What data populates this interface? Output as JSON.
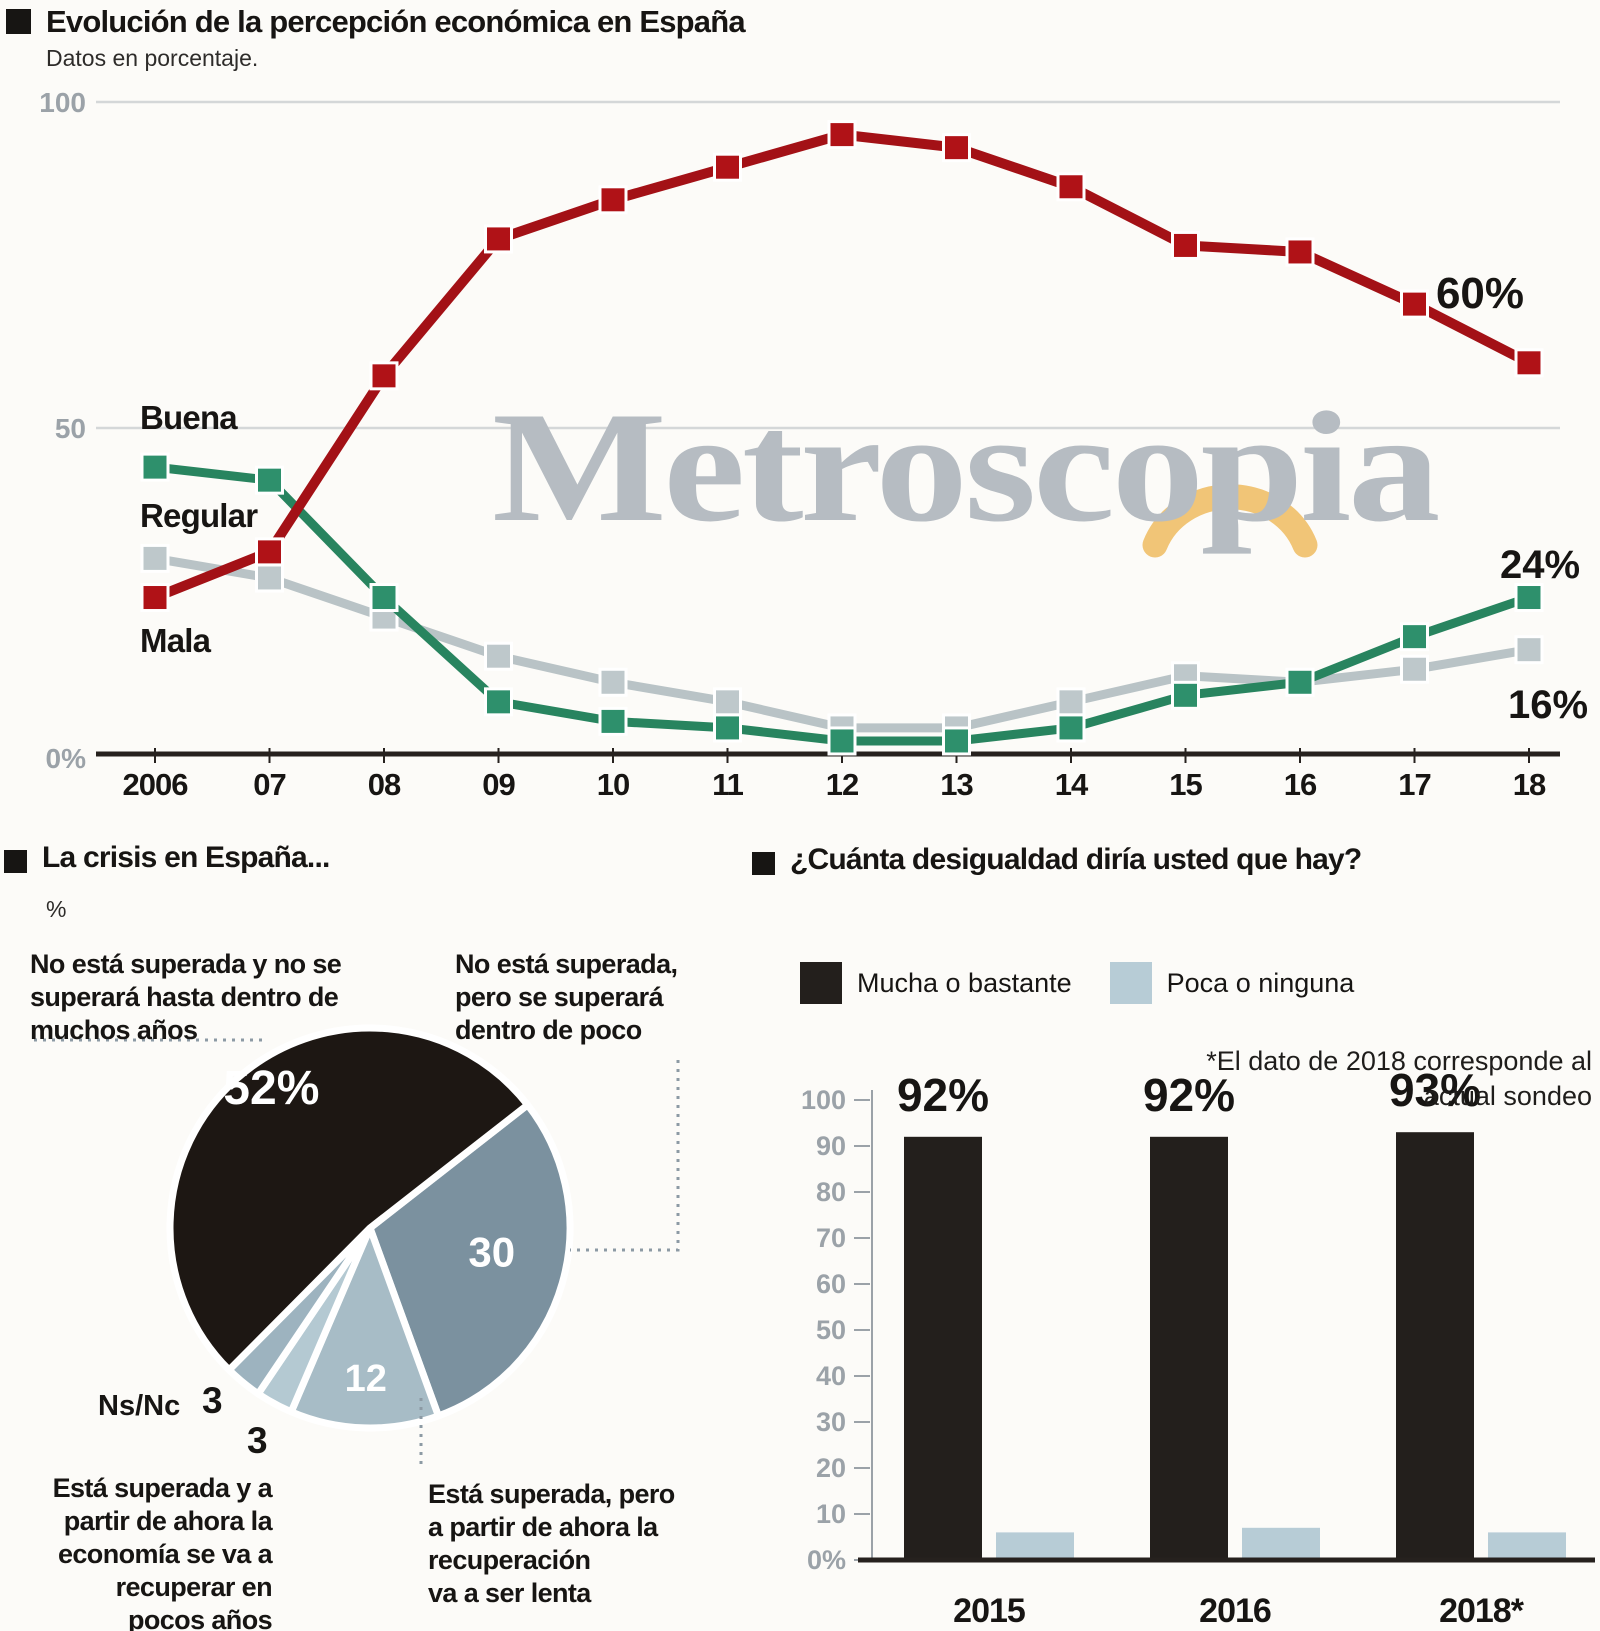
{
  "chart_data": [
    {
      "type": "line",
      "title": "Evolución de la percepción económica en España",
      "subtitle": "Datos en porcentaje.",
      "watermark": "Metroscopia",
      "x": [
        "2006",
        "07",
        "08",
        "09",
        "10",
        "11",
        "12",
        "13",
        "14",
        "15",
        "16",
        "17",
        "18"
      ],
      "ylim": [
        0,
        100
      ],
      "grid": true,
      "yticks": [
        {
          "value": 100,
          "label": "100"
        },
        {
          "value": 50,
          "label": "50"
        },
        {
          "value": 0,
          "label": "0%"
        }
      ],
      "series": [
        {
          "name": "Buena",
          "color": "#2e906c",
          "line_color": "#28845f",
          "values": [
            44,
            42,
            24,
            8,
            5,
            4,
            2,
            2,
            4,
            9,
            11,
            18,
            24
          ],
          "end_label": "24%"
        },
        {
          "name": "Regular",
          "color": "#bec8cb",
          "line_color": "#b9c3c6",
          "values": [
            30,
            27,
            21,
            15,
            11,
            8,
            4,
            4,
            8,
            12,
            11,
            13,
            16
          ],
          "end_label": "16%"
        },
        {
          "name": "Mala",
          "color": "#b01217",
          "line_color": "#a31116",
          "values": [
            24,
            31,
            58,
            79,
            85,
            90,
            95,
            93,
            87,
            78,
            77,
            69,
            60
          ],
          "end_label": "60%"
        }
      ]
    },
    {
      "type": "pie",
      "title": "La crisis en España...",
      "subtitle": "%",
      "start_angle": 52,
      "slices": [
        {
          "label": "No está superada, pero se superará dentro de poco",
          "value": 30,
          "display": "30",
          "color": "#7b919f"
        },
        {
          "label": "Está superada, pero a partir de ahora la recuperación va a ser lenta",
          "value": 12,
          "display": "12",
          "color": "#a7bcc6"
        },
        {
          "label": "Está superada y a partir de ahora la economía se va a recuperar en pocos años",
          "value": 3,
          "display": "3",
          "color": "#b4c9d2"
        },
        {
          "label": "Ns/Nc",
          "value": 3,
          "display": "3",
          "color": "#9db3bf"
        },
        {
          "label": "No está superada y no se superará hasta dentro de muchos años",
          "value": 52,
          "display": "52%",
          "color": "#1d1713"
        }
      ],
      "labels": {
        "top_left_lines": [
          "No está superada y no se",
          "superará hasta dentro de",
          "muchos años"
        ],
        "top_right_lines": [
          "No está superada,",
          "pero se superará",
          "dentro de poco"
        ],
        "bottom_left_lines": [
          "Está superada y a",
          "partir de ahora la",
          "economía se va a",
          "recuperar en",
          "pocos años"
        ],
        "bottom_right_lines": [
          "Está superada, pero",
          "a partir de ahora la",
          "recuperación",
          "va a ser lenta"
        ],
        "nsnc": "Ns/Nc"
      }
    },
    {
      "type": "bar",
      "title": "¿Cuánta desigualdad diría usted que hay?",
      "note_lines": [
        "*El dato de 2018 corresponde al",
        "actual sondeo"
      ],
      "categories": [
        "2015",
        "2016",
        "2018*"
      ],
      "ylim": [
        0,
        100
      ],
      "ytick_labels": [
        "100",
        "90",
        "80",
        "70",
        "60",
        "50",
        "40",
        "30",
        "20",
        "10",
        "0%"
      ],
      "series": [
        {
          "name": "Mucha o bastante",
          "color": "#231f1c",
          "values": [
            92,
            92,
            93
          ],
          "value_labels": [
            "92%",
            "92%",
            "93%"
          ]
        },
        {
          "name": "Poca o ninguna",
          "color": "#b7ccd6",
          "values": [
            6,
            7,
            6
          ]
        }
      ]
    }
  ],
  "colors": {
    "background": "#fcfbf8",
    "axis": "#26211e",
    "gridline": "#d4d7d8",
    "tick_text": "#9ba2a8",
    "watermark_gray": "#b6bcc2",
    "watermark_arc_yellow": "#f1c577",
    "dotted_connector": "#8c9aa4"
  }
}
